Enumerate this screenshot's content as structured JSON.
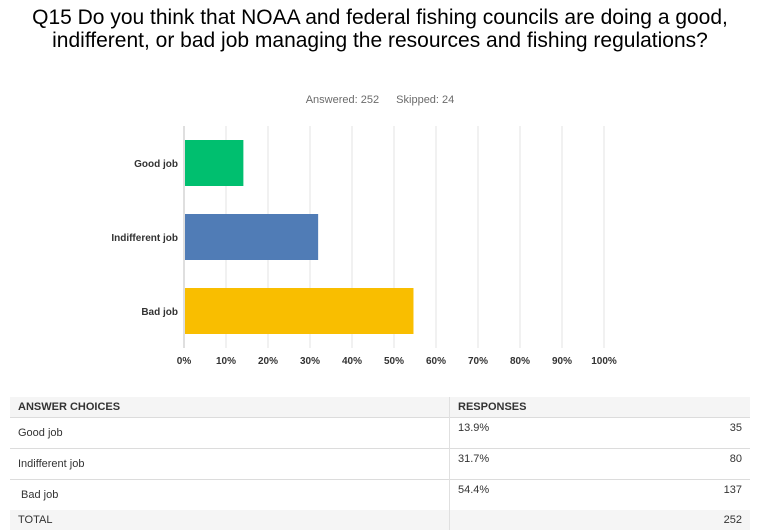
{
  "question": {
    "title": "Q15 Do you think that NOAA and federal fishing councils are doing a good, indifferent, or bad job managing the resources and fishing regulations?",
    "answered": "Answered: 252",
    "skipped": "Skipped: 24"
  },
  "chart_data": {
    "type": "bar",
    "orientation": "horizontal",
    "categories": [
      "Good job",
      "Indifferent job",
      "Bad job"
    ],
    "values": [
      13.9,
      31.7,
      54.4
    ],
    "colors": [
      "#00bf6f",
      "#507cb6",
      "#f9be00"
    ],
    "xlim": [
      0,
      100
    ],
    "xticks": [
      "0%",
      "10%",
      "20%",
      "30%",
      "40%",
      "50%",
      "60%",
      "70%",
      "80%",
      "90%",
      "100%"
    ],
    "grid": true
  },
  "table": {
    "headers": [
      "ANSWER CHOICES",
      "RESPONSES"
    ],
    "rows": [
      {
        "choice": "Good job",
        "percent": "13.9%",
        "count": "35"
      },
      {
        "choice": "Indifferent job",
        "percent": "31.7%",
        "count": "80"
      },
      {
        "choice": "Bad job",
        "percent": "54.4%",
        "count": "137"
      }
    ],
    "total_label": "TOTAL",
    "total_count": "252"
  }
}
